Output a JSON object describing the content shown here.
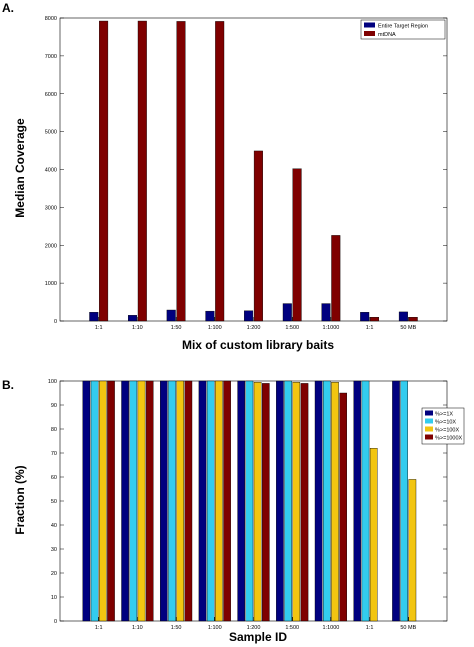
{
  "chart_data": [
    {
      "type": "bar",
      "panel_label": "A.",
      "categories": [
        "1:1",
        "1:10",
        "1:50",
        "1:100",
        "1:200",
        "1:500",
        "1:1000",
        "1:1",
        "50 MB"
      ],
      "series": [
        {
          "name": "Entire Target Region",
          "color": "#00007f",
          "values": [
            230,
            150,
            290,
            260,
            270,
            460,
            460,
            230,
            240
          ]
        },
        {
          "name": "mtDNA",
          "color": "#7f0000",
          "values": [
            7920,
            7920,
            7910,
            7910,
            4490,
            4020,
            2260,
            100,
            100
          ]
        }
      ],
      "xlabel": "Mix of custom library baits",
      "ylabel": "Median Coverage",
      "ylim": [
        0,
        8000
      ],
      "yticks": [
        "0",
        "1000",
        "2000",
        "3000",
        "4000",
        "5000",
        "6000",
        "7000",
        "8000"
      ],
      "grid": false,
      "legend": "top-right"
    },
    {
      "type": "bar",
      "panel_label": "B.",
      "categories": [
        "1:1",
        "1:10",
        "1:50",
        "1:100",
        "1:200",
        "1:500",
        "1:1000",
        "1:1",
        "50 MB"
      ],
      "series": [
        {
          "name": "%>=1X",
          "color": "#00007f",
          "values": [
            100,
            100,
            100,
            100,
            100,
            100,
            100,
            100,
            100
          ]
        },
        {
          "name": "%>=10X",
          "color": "#33ccee",
          "values": [
            100,
            100,
            100,
            100,
            100,
            100,
            100,
            100,
            100
          ]
        },
        {
          "name": "%>=100X",
          "color": "#f2c511",
          "values": [
            100,
            100,
            100,
            100,
            99.5,
            99.5,
            99.5,
            72,
            59
          ]
        },
        {
          "name": "%>=1000X",
          "color": "#7f0000",
          "values": [
            100,
            100,
            100,
            100,
            99,
            99,
            95,
            0,
            0
          ]
        }
      ],
      "xlabel": "Sample ID",
      "ylabel": "Fraction (%)",
      "ylim": [
        0,
        100
      ],
      "yticks": [
        "0",
        "10",
        "20",
        "30",
        "40",
        "50",
        "60",
        "70",
        "80",
        "90",
        "100"
      ],
      "grid": false,
      "legend": "top-right"
    }
  ]
}
